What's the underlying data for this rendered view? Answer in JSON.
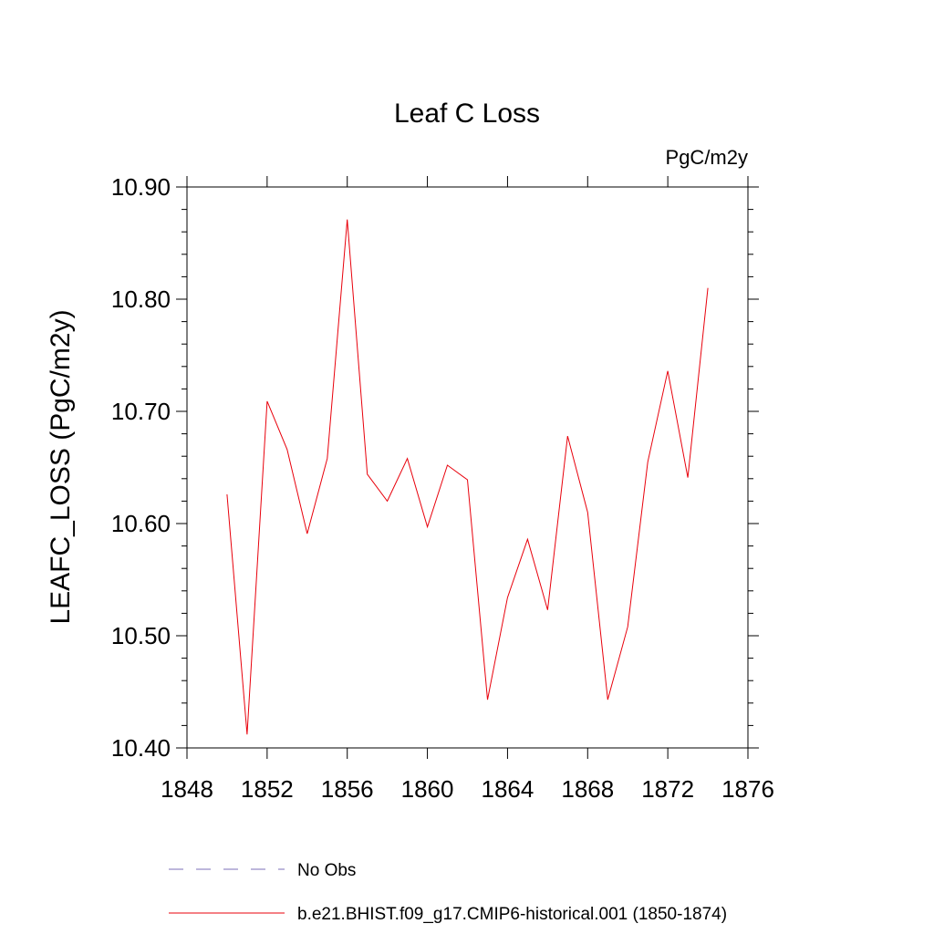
{
  "chart_data": {
    "type": "line",
    "title": "Leaf C Loss",
    "units_label": "PgC/m2y",
    "ylabel": "LEAFC_LOSS  (PgC/m2y)",
    "xlabel": "",
    "xlim": [
      1848,
      1876
    ],
    "ylim": [
      10.4,
      10.9
    ],
    "x_ticks": [
      "1848",
      "1852",
      "1856",
      "1860",
      "1864",
      "1868",
      "1872",
      "1876"
    ],
    "y_ticks": [
      "10.40",
      "10.50",
      "10.60",
      "10.70",
      "10.80",
      "10.90"
    ],
    "grid": false,
    "legend_position": "bottom",
    "series": [
      {
        "name": "No Obs",
        "color": "#7b6fb8",
        "style": "dashed",
        "x": [],
        "values": []
      },
      {
        "name": "b.e21.BHIST.f09_g17.CMIP6-historical.001 (1850-1874)",
        "color": "#e8000b",
        "style": "solid",
        "x": [
          1850,
          1851,
          1852,
          1853,
          1854,
          1855,
          1856,
          1857,
          1858,
          1859,
          1860,
          1861,
          1862,
          1863,
          1864,
          1865,
          1866,
          1867,
          1868,
          1869,
          1870,
          1871,
          1872,
          1873,
          1874
        ],
        "values": [
          10.626,
          10.412,
          10.709,
          10.666,
          10.591,
          10.658,
          10.871,
          10.644,
          10.62,
          10.658,
          10.597,
          10.652,
          10.639,
          10.443,
          10.534,
          10.586,
          10.523,
          10.678,
          10.61,
          10.443,
          10.508,
          10.655,
          10.736,
          10.641,
          10.81
        ]
      }
    ]
  }
}
